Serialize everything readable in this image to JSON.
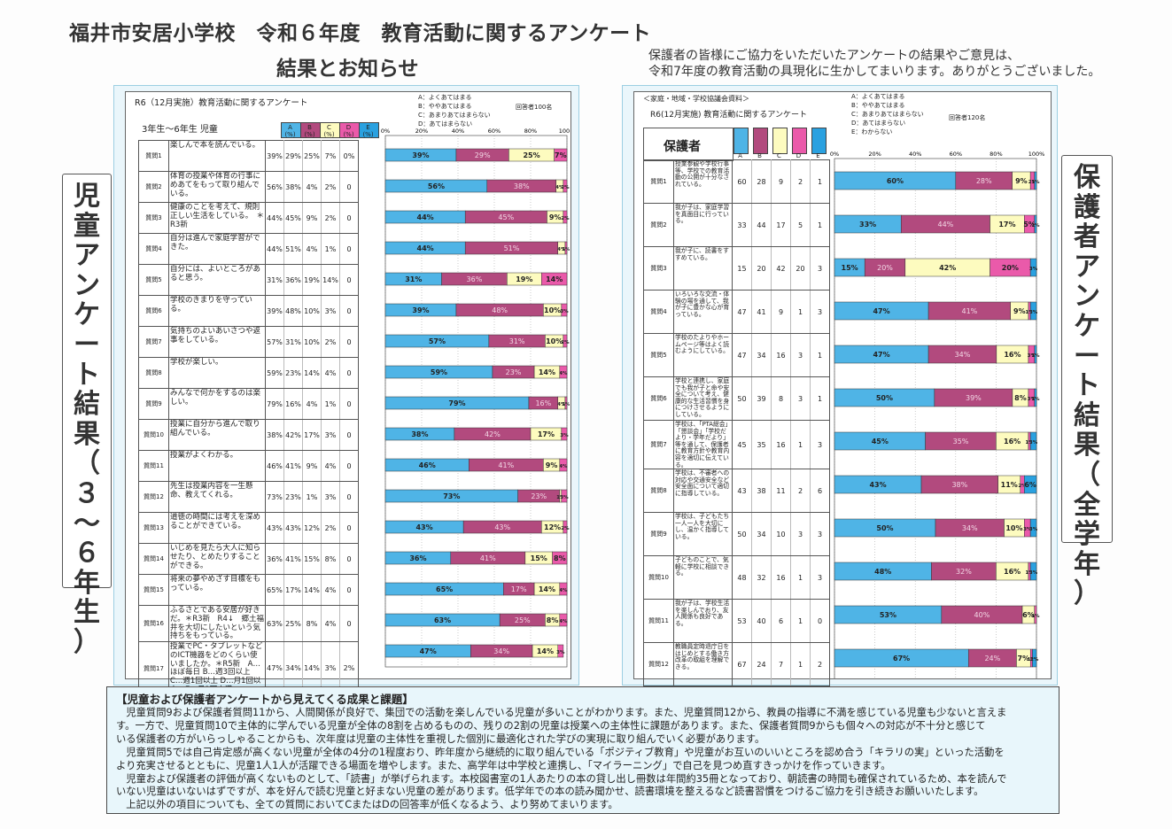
{
  "header": {
    "title_line1": "福井市安居小学校　令和６年度　教育活動に関するアンケート",
    "title_line2": "結果とお知らせ",
    "thanks_line1": "保護者の皆様にご協力をいただいたアンケートの結果やご意見は、",
    "thanks_line2": "令和7年度の教育活動の具現化に生かしてまいります。ありがとうございました。"
  },
  "side_labels": {
    "left": [
      "児",
      "童",
      "ア",
      "ン",
      "ケ",
      "ー",
      "ト",
      "結",
      "果",
      "（",
      "３",
      "〜",
      "６",
      "年",
      "生",
      "）"
    ],
    "right": [
      "保",
      "護",
      "者",
      "ア",
      "ン",
      "ケ",
      "ー",
      "ト",
      "結",
      "果",
      "（",
      "全",
      "学",
      "年",
      "）"
    ]
  },
  "colors": {
    "A": "#4fb4e6",
    "B": "#b24a7e",
    "C": "#fdfbbf",
    "D": "#ea5aaa",
    "E": "#2aa1e0",
    "panel": "#eaf6fb"
  },
  "student": {
    "title": "R6（12月実施）教育活動に関するアンケート",
    "group": "3年生〜6年生  児童",
    "respondents": "回答者100名",
    "legend": [
      "A：よくあてはまる",
      "B：ややあてはまる",
      "C：あまりあてはまらない",
      "D：あてはまらない"
    ],
    "col_heads": [
      "A\n(%)",
      "B\n(%)",
      "C\n(%)",
      "D\n(%)",
      "E\n(%)"
    ],
    "axis_ticks": [
      "0%",
      "20%",
      "40%",
      "60%",
      "80%",
      "100%"
    ],
    "rows": [
      {
        "q": "質問1",
        "text": "楽しんで本を読んでいる。",
        "A": 39,
        "B": 29,
        "C": 25,
        "D": 7,
        "E": "0%"
      },
      {
        "q": "質問2",
        "text": "体育の授業や体育の行事にめあてをもって取り組んでいる。",
        "A": 56,
        "B": 38,
        "C": 4,
        "D": 2,
        "E": "0"
      },
      {
        "q": "質問3",
        "text": "健康のことを考えて、規則正しい生活をしている。　＊R3新",
        "A": 44,
        "B": 45,
        "C": 9,
        "D": 2,
        "E": "0"
      },
      {
        "q": "質問4",
        "text": "自分は進んで家庭学習ができた。",
        "A": 44,
        "B": 51,
        "C": 4,
        "D": 1,
        "E": "0"
      },
      {
        "q": "質問5",
        "text": "自分には、よいところがあると思う。",
        "A": 31,
        "B": 36,
        "C": 19,
        "D": 14,
        "E": "0"
      },
      {
        "q": "質問6",
        "text": "学校のきまりを守っている。",
        "A": 39,
        "B": 48,
        "C": 10,
        "D": 3,
        "E": "0"
      },
      {
        "q": "質問7",
        "text": "気持ちのよいあいさつや返事をしている。",
        "A": 57,
        "B": 31,
        "C": 10,
        "D": 2,
        "E": "0"
      },
      {
        "q": "質問8",
        "text": "学校が楽しい。",
        "A": 59,
        "B": 23,
        "C": 14,
        "D": 4,
        "E": "0"
      },
      {
        "q": "質問9",
        "text": "みんなで何かをするのは楽しい。",
        "A": 79,
        "B": 16,
        "C": 4,
        "D": 1,
        "E": "0"
      },
      {
        "q": "質問10",
        "text": "授業に自分から進んで取り組んでいる。",
        "A": 38,
        "B": 42,
        "C": 17,
        "D": 3,
        "E": "0"
      },
      {
        "q": "質問11",
        "text": "授業がよくわかる。",
        "A": 46,
        "B": 41,
        "C": 9,
        "D": 4,
        "E": "0"
      },
      {
        "q": "質問12",
        "text": "先生は授業内容を一生懸命、教えてくれる。",
        "A": 73,
        "B": 23,
        "C": 1,
        "D": 3,
        "E": "0"
      },
      {
        "q": "質問13",
        "text": "道徳の時間には考えを深めることができている。",
        "A": 43,
        "B": 43,
        "C": 12,
        "D": 2,
        "E": "0"
      },
      {
        "q": "質問14",
        "text": "いじめを見たら大人に知らせたり、とめたりすることができる。",
        "A": 36,
        "B": 41,
        "C": 15,
        "D": 8,
        "E": "0"
      },
      {
        "q": "質問15",
        "text": "将来の夢やめざす目標をもっている。",
        "A": 65,
        "B": 17,
        "C": 14,
        "D": 4,
        "E": "0"
      },
      {
        "q": "質問16",
        "text": "ふるさとである安居が好きだ。＊R3新　R4↓　郷土福井を大切にしたいという気持ちをもっている。",
        "A": 63,
        "B": 25,
        "C": 8,
        "D": 4,
        "E": "0"
      },
      {
        "q": "質問17",
        "text": "授業でPC・タブレットなどのICT機器をどのくらい使いましたか。＊R5新　A…ほぼ毎日 B…週3回以上　C…週1回以上 D…月1回以上　E…月1回未満",
        "A": 47,
        "B": 34,
        "C": 14,
        "D": 3,
        "E": "2%"
      }
    ]
  },
  "parent": {
    "source": "＜家庭・地域・学校協議会資料＞",
    "title": "R6(12月実施) 教育活動に関するアンケート",
    "group": "保護者",
    "respondents": "回答者120名",
    "legend": [
      "A：よくあてはまる",
      "B：ややあてはまる",
      "C：あまりあてはまらない",
      "D：あてはまらない",
      "E：わからない"
    ],
    "col_heads": [
      "A",
      "B",
      "C",
      "D",
      "E"
    ],
    "axis_ticks": [
      "0%",
      "20%",
      "40%",
      "60%",
      "80%",
      "100%"
    ],
    "rows": [
      {
        "q": "質問1",
        "text": "授業参観や学校行事等、学校での教育活動の公開が十分なされている。",
        "A": 60,
        "B": 28,
        "C": 9,
        "D": 2,
        "E": 1
      },
      {
        "q": "質問2",
        "text": "我が子は、家庭学習を真面目に行っている。",
        "A": 33,
        "B": 44,
        "C": 17,
        "D": 5,
        "E": 1
      },
      {
        "q": "質問3",
        "text": "我が子に、読書をすすめている。",
        "A": 15,
        "B": 20,
        "C": 42,
        "D": 20,
        "E": 3
      },
      {
        "q": "質問4",
        "text": "いろいろな交流・体験の場を通して、我が子に豊かな心が育っている。",
        "A": 47,
        "B": 41,
        "C": 9,
        "D": 1,
        "E": 3
      },
      {
        "q": "質問5",
        "text": "学校のたよりやホームページ等はよく読むようにしている。",
        "A": 47,
        "B": 34,
        "C": 16,
        "D": 3,
        "E": 1
      },
      {
        "q": "質問6",
        "text": "学校と連携し、家庭でも我が子と命や安全について考え、健康的な生活習慣を身につけさせるようにしている。",
        "A": 50,
        "B": 39,
        "C": 8,
        "D": 3,
        "E": 1
      },
      {
        "q": "質問7",
        "text": "学校は、「PTA総会」「懇談会」「学校だより・学年だより」等を通して、保護者に教育方針や教育内容を適切に伝えている。",
        "A": 45,
        "B": 35,
        "C": 16,
        "D": 1,
        "E": 3
      },
      {
        "q": "質問8",
        "text": "学校は、不審者への対応や交通安全など安全面について適切に指導している。",
        "A": 43,
        "B": 38,
        "C": 11,
        "D": 2,
        "E": 6
      },
      {
        "q": "質問9",
        "text": "学校は、子どもたち一人一人を大切にし、温かく指導している。",
        "A": 50,
        "B": 34,
        "C": 10,
        "D": 3,
        "E": 3
      },
      {
        "q": "質問10",
        "text": "子どものことで、気軽に学校に相談できる。",
        "A": 48,
        "B": 32,
        "C": 16,
        "D": 1,
        "E": 3
      },
      {
        "q": "質問11",
        "text": "我が子は、学校生活を楽しんでおり、友人関係も良好である。",
        "A": 53,
        "B": 40,
        "C": 6,
        "D": 1,
        "E": 0
      },
      {
        "q": "質問12",
        "text": "教職員定時退庁日を はじめとする働き方改革の取組を理解できる。",
        "A": 67,
        "B": 24,
        "C": 7,
        "D": 1,
        "E": 2
      }
    ]
  },
  "summary": {
    "heading": "【児童および保護者アンケートから見えてくる成果と課題】",
    "lines": [
      "　児童質問9および保護者質問11から、人間関係が良好で、集団での活動を楽しんでいる児童が多いことがわかります。また、児童質問12から、教員の指導に不満を感じている児童も少ないと言えま",
      "す。一方で、児童質問10で主体的に学んでいる児童が全体の8割を占めるものの、残りの2割の児童は授業への主体性に課題があります。また、保護者質問9からも個々への対応が不十分と感じて",
      "いる保護者の方がいらっしゃることからも、次年度は児童の主体性を重視した個別に最適化された学びの実現に取り組んでいく必要があります。",
      "　児童質問5では自己肯定感が高くない児童が全体の4分の1程度おり、昨年度から継続的に取り組んでいる「ポジティブ教育」や児童がお互いのいいところを認め合う「キラリの実」といった活動を",
      "より充実させるとともに、児童1人1人が活躍できる場面を増やします。また、高学年は中学校と連携し、「マイラーニング」で自己を見つめ直すきっかけを作っていきます。",
      "　児童および保護者の評価が高くないものとして、「読書」が挙げられます。本校図書室の1人あたりの本の貸し出し冊数は年間約35冊となっており、朝読書の時間も確保されているため、本を読んで",
      "いない児童はいないはずですが、本を好んで読む児童と好まない児童の差があります。低学年での本の読み聞かせ、読書環境を整えるなど読書習慣をつけるご協力を引き続きお願いいたします。",
      "　上記以外の項目についても、全ての質問においてCまたはDの回答率が低くなるよう、より努めてまいります。"
    ]
  }
}
